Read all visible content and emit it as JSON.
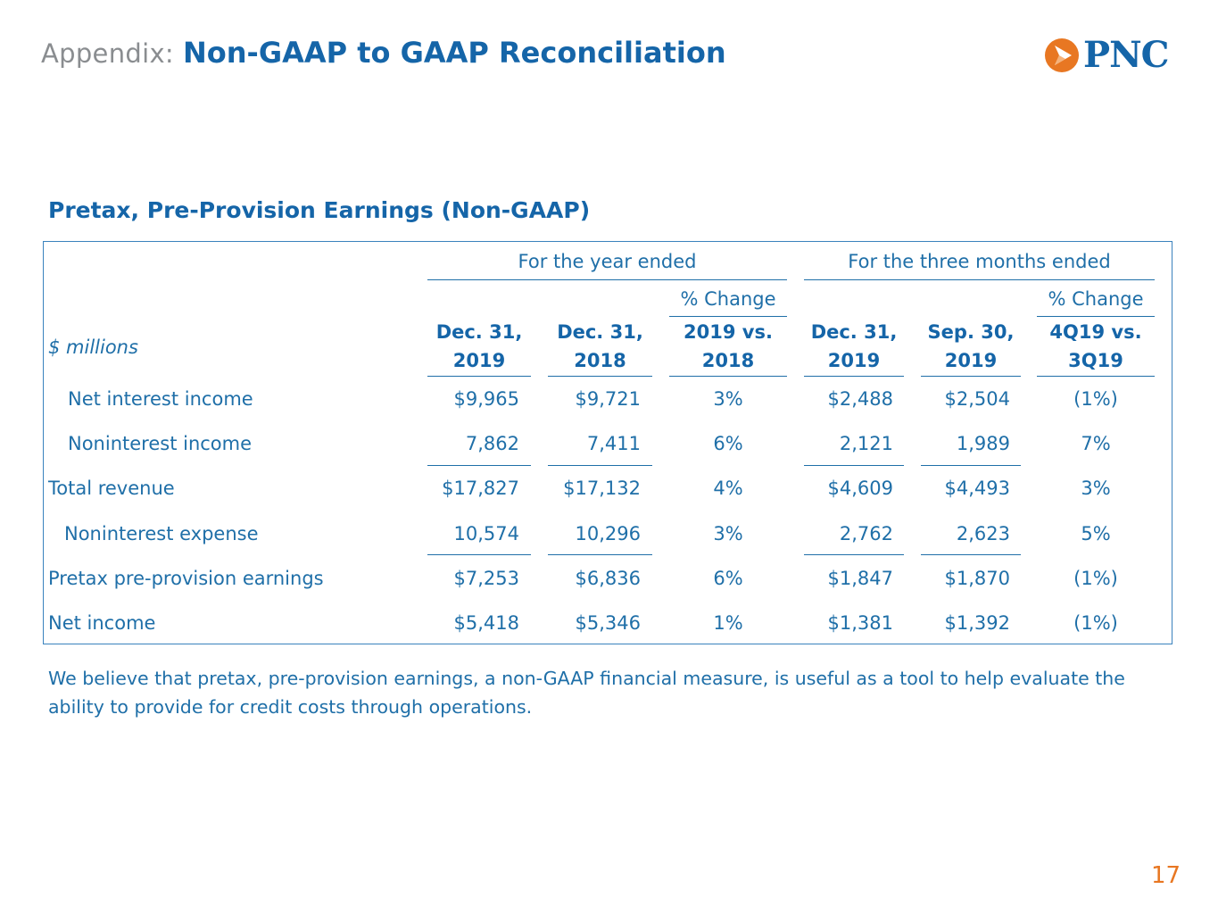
{
  "header": {
    "prefix": "Appendix:",
    "title": "Non-GAAP to GAAP Reconciliation",
    "logo_text": "PNC",
    "brand_color": "#1565a8",
    "accent_color": "#e87722"
  },
  "section_title": "Pretax, Pre-Provision Earnings  (Non-GAAP)",
  "table": {
    "group_year": "For the year ended",
    "group_quarter": "For the three months ended",
    "pct_change_label_1": "% Change",
    "pct_change_label_2": "% Change",
    "units_label": "$ millions",
    "columns": [
      {
        "line1": "Dec. 31,",
        "line2": "2019"
      },
      {
        "line1": "Dec. 31,",
        "line2": "2018"
      },
      {
        "line1": "2019 vs.",
        "line2": "2018"
      },
      {
        "line1": "Dec. 31,",
        "line2": "2019"
      },
      {
        "line1": "Sep. 30,",
        "line2": "2019"
      },
      {
        "line1": "4Q19 vs.",
        "line2": "3Q19"
      }
    ],
    "rows": [
      {
        "label": "Net interest income",
        "values": [
          "$9,965",
          "$9,721",
          "3%",
          "$2,488",
          "$2,504",
          "(1%)"
        ]
      },
      {
        "label": "Noninterest income",
        "values": [
          "7,862",
          "7,411",
          "6%",
          "2,121",
          "1,989",
          "7%"
        ]
      },
      {
        "label": "Total revenue",
        "values": [
          "$17,827",
          "$17,132",
          "4%",
          "$4,609",
          "$4,493",
          "3%"
        ]
      },
      {
        "label": "Noninterest expense",
        "values": [
          "10,574",
          "10,296",
          "3%",
          "2,762",
          "2,623",
          "5%"
        ]
      },
      {
        "label": "Pretax pre-provision earnings",
        "values": [
          "$7,253",
          "$6,836",
          "6%",
          "$1,847",
          "$1,870",
          "(1%)"
        ]
      },
      {
        "label": "Net income",
        "values": [
          "$5,418",
          "$5,346",
          "1%",
          "$1,381",
          "$1,392",
          "(1%)"
        ]
      }
    ]
  },
  "footnote": "We believe that pretax, pre-provision earnings, a non-GAAP financial measure, is useful as a tool to help evaluate the ability to provide for credit costs through operations.",
  "page_number": "17"
}
